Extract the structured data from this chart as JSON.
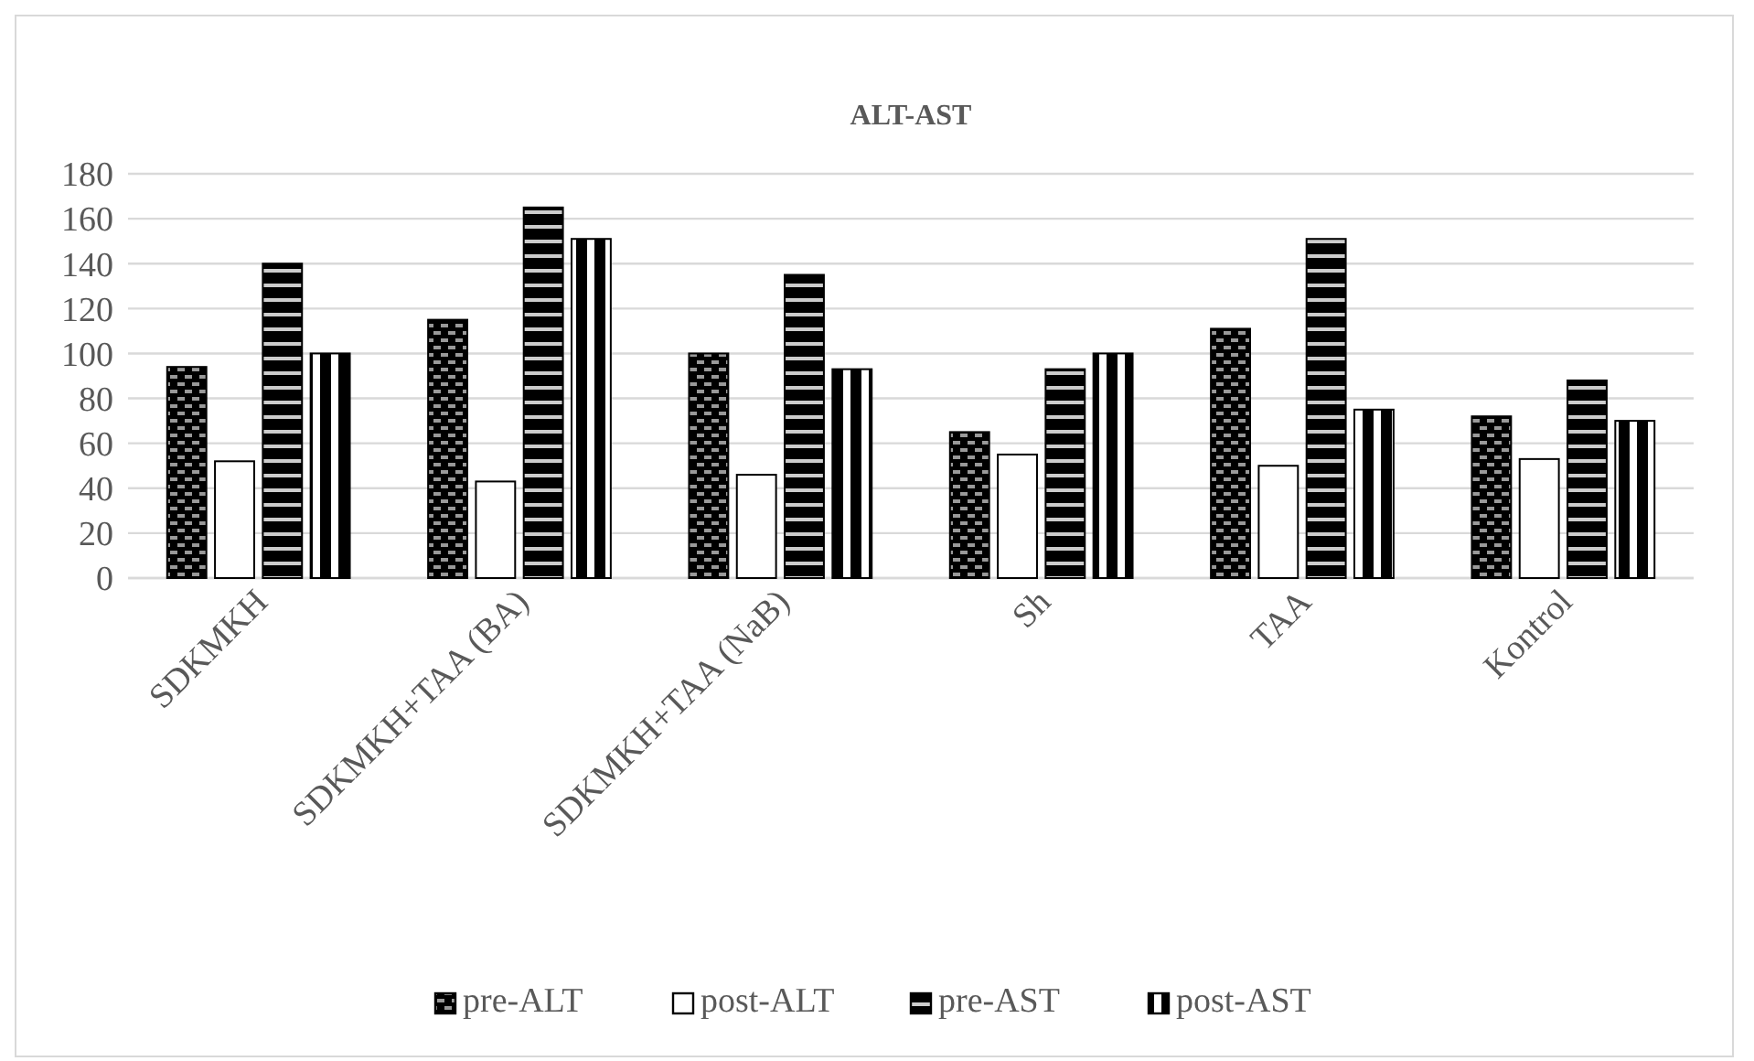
{
  "chart_data": {
    "type": "bar",
    "title": "ALT-AST",
    "categories": [
      "SDKMKH",
      "SDKMKH+TAA (BA)",
      "SDKMKH+TAA (NaB)",
      "Sh",
      "TAA",
      "Kontrol"
    ],
    "series": [
      {
        "name": "pre-ALT",
        "color": "#000000",
        "values": [
          94,
          115,
          100,
          65,
          111,
          72
        ]
      },
      {
        "name": "post-ALT",
        "color": "#ffffff",
        "values": [
          52,
          43,
          46,
          55,
          50,
          53
        ]
      },
      {
        "name": "pre-AST",
        "color": "#000000",
        "values": [
          140,
          165,
          135,
          93,
          151,
          88
        ]
      },
      {
        "name": "post-AST",
        "color": "#000000",
        "values": [
          100,
          151,
          93,
          100,
          75,
          70
        ]
      }
    ],
    "ylim": [
      0,
      180
    ],
    "yticks": [
      0,
      20,
      40,
      60,
      80,
      100,
      120,
      140,
      160,
      180
    ],
    "grid": "y",
    "legend": "bottom"
  }
}
